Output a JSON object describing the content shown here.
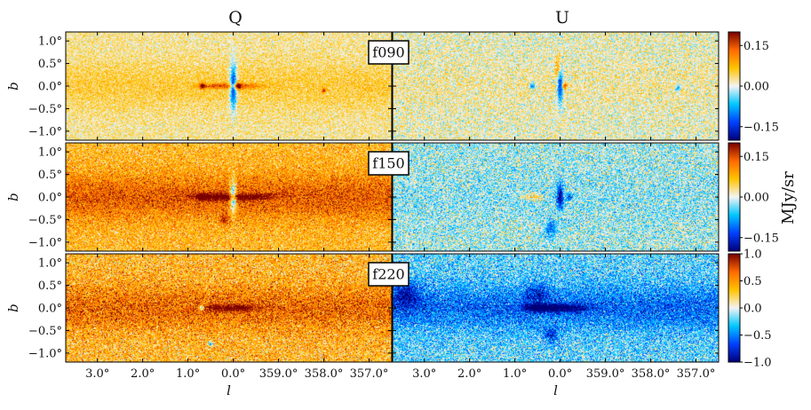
{
  "chart_data": {
    "type": "heatmap",
    "column_titles": [
      "Q",
      "U"
    ],
    "x_axis": {
      "label": "l",
      "tick_values_deg": [
        3.0,
        2.0,
        1.0,
        0.0,
        -1.0,
        -2.0,
        -3.0
      ],
      "tick_labels": [
        "3.0°",
        "2.0°",
        "1.0°",
        "0.0°",
        "359.0°",
        "358.0°",
        "357.0°"
      ],
      "range_deg": [
        3.7,
        -3.5
      ]
    },
    "y_axis": {
      "label": "b",
      "tick_values_deg": [
        1.0,
        0.5,
        0.0,
        -0.5,
        -1.0
      ],
      "tick_labels": [
        "1.0°",
        "0.5°",
        "0.0°",
        "−0.5°",
        "−1.0°"
      ],
      "range_deg": [
        -1.2,
        1.2
      ]
    },
    "colorbar_unit": "MJy/sr",
    "colormap": [
      "#00007a",
      "#0040ff",
      "#00c8ff",
      "#f4f4f4",
      "#ffc400",
      "#ff6a00",
      "#7a0000"
    ],
    "rows": [
      {
        "band": "f090",
        "colorbar": {
          "range": [
            -0.2,
            0.2
          ],
          "tick_values": [
            0.15,
            0.0,
            -0.15
          ],
          "tick_labels": [
            "0.15",
            "0.00",
            "−0.15"
          ]
        }
      },
      {
        "band": "f150",
        "colorbar": {
          "range": [
            -0.2,
            0.2
          ],
          "tick_values": [
            0.15,
            0.0,
            -0.15
          ],
          "tick_labels": [
            "0.15",
            "0.00",
            "−0.15"
          ]
        }
      },
      {
        "band": "f220",
        "colorbar": {
          "range": [
            -1.0,
            1.0
          ],
          "tick_values": [
            1.0,
            0.5,
            0.0,
            -0.5,
            -1.0
          ],
          "tick_labels": [
            "1.0",
            "0.5",
            "0.0",
            "−0.5",
            "−1.0"
          ]
        }
      }
    ],
    "panels": [
      {
        "band": "f090",
        "stokes": "Q",
        "background_level": 0.12,
        "noise": 0.12,
        "plane_amp": 0.15,
        "features": [
          {
            "l": 0.0,
            "b": 0.0,
            "amp": -1.0,
            "sl": 0.05,
            "sb": 0.35
          },
          {
            "l": 0.35,
            "b": 0.0,
            "amp": 0.45,
            "sl": 0.3,
            "sb": 0.04
          },
          {
            "l": -0.3,
            "b": 0.0,
            "amp": 0.35,
            "sl": 0.3,
            "sb": 0.04
          },
          {
            "l": 0.68,
            "b": 0.0,
            "amp": 0.8,
            "sl": 0.04,
            "sb": 0.04
          },
          {
            "l": -0.1,
            "b": 0.0,
            "amp": 0.7,
            "sl": 0.05,
            "sb": 0.05
          },
          {
            "l": -2.0,
            "b": -0.1,
            "amp": 0.8,
            "sl": 0.03,
            "sb": 0.03
          }
        ]
      },
      {
        "band": "f090",
        "stokes": "U",
        "background_level": 0.05,
        "noise": 0.15,
        "plane_amp": 0.05,
        "features": [
          {
            "l": 0.0,
            "b": 0.0,
            "amp": -0.9,
            "sl": 0.04,
            "sb": 0.25
          },
          {
            "l": 0.62,
            "b": 0.0,
            "amp": -0.7,
            "sl": 0.04,
            "sb": 0.04
          },
          {
            "l": -0.1,
            "b": 0.0,
            "amp": 0.7,
            "sl": 0.04,
            "sb": 0.04
          },
          {
            "l": -2.6,
            "b": -0.05,
            "amp": -0.6,
            "sl": 0.04,
            "sb": 0.04
          },
          {
            "l": 0.05,
            "b": 0.4,
            "amp": 0.4,
            "sl": 0.04,
            "sb": 0.2
          }
        ]
      },
      {
        "band": "f150",
        "stokes": "Q",
        "background_level": 0.35,
        "noise": 0.18,
        "plane_amp": 0.35,
        "features": [
          {
            "l": 0.0,
            "b": 0.0,
            "amp": -1.0,
            "sl": 0.05,
            "sb": 0.25
          },
          {
            "l": 0.4,
            "b": 0.0,
            "amp": 0.6,
            "sl": 0.35,
            "sb": 0.05
          },
          {
            "l": -0.4,
            "b": 0.0,
            "amp": 0.5,
            "sl": 0.35,
            "sb": 0.05
          },
          {
            "l": 0.7,
            "b": 0.0,
            "amp": 0.8,
            "sl": 0.05,
            "sb": 0.05
          },
          {
            "l": 0.2,
            "b": -0.5,
            "amp": 0.4,
            "sl": 0.08,
            "sb": 0.08
          }
        ]
      },
      {
        "band": "f150",
        "stokes": "U",
        "background_level": -0.08,
        "noise": 0.2,
        "plane_amp": -0.05,
        "features": [
          {
            "l": 0.0,
            "b": 0.0,
            "amp": -0.9,
            "sl": 0.05,
            "sb": 0.2
          },
          {
            "l": 0.6,
            "b": 0.0,
            "amp": 0.4,
            "sl": 0.15,
            "sb": 0.05
          },
          {
            "l": 0.2,
            "b": -0.7,
            "amp": -0.5,
            "sl": 0.08,
            "sb": 0.15
          },
          {
            "l": -0.2,
            "b": 0.0,
            "amp": -0.6,
            "sl": 0.05,
            "sb": 0.05
          }
        ]
      },
      {
        "band": "f220",
        "stokes": "Q",
        "background_level": 0.35,
        "noise": 0.22,
        "plane_amp": 0.3,
        "features": [
          {
            "l": 0.3,
            "b": 0.0,
            "amp": 0.5,
            "sl": 0.25,
            "sb": 0.05
          },
          {
            "l": -0.2,
            "b": 0.0,
            "amp": 0.45,
            "sl": 0.25,
            "sb": 0.05
          },
          {
            "l": 0.7,
            "b": 0.0,
            "amp": -0.8,
            "sl": 0.04,
            "sb": 0.04
          },
          {
            "l": 0.5,
            "b": -0.8,
            "amp": -0.7,
            "sl": 0.04,
            "sb": 0.04
          }
        ]
      },
      {
        "band": "f220",
        "stokes": "U",
        "background_level": -0.22,
        "noise": 0.22,
        "plane_amp": -0.35,
        "features": [
          {
            "l": 0.0,
            "b": 0.0,
            "amp": -0.8,
            "sl": 0.4,
            "sb": 0.06
          },
          {
            "l": 0.5,
            "b": 0.0,
            "amp": -0.7,
            "sl": 0.2,
            "sb": 0.05
          },
          {
            "l": 0.5,
            "b": 0.3,
            "amp": -0.4,
            "sl": 0.2,
            "sb": 0.15
          },
          {
            "l": 3.4,
            "b": 0.3,
            "amp": -0.5,
            "sl": 0.2,
            "sb": 0.2
          },
          {
            "l": 0.2,
            "b": -0.6,
            "amp": -0.5,
            "sl": 0.1,
            "sb": 0.12
          }
        ]
      }
    ]
  }
}
